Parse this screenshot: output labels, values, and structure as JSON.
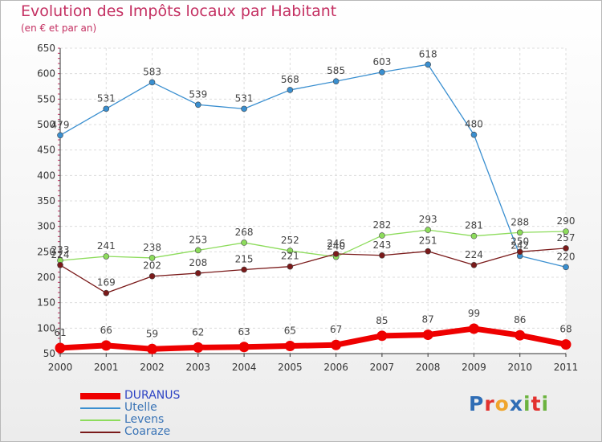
{
  "title": "Evolution des Impôts locaux par Habitant",
  "subtitle": "(en € et par an)",
  "logo": {
    "letters": [
      "P",
      "r",
      "o",
      "x",
      "i",
      "t",
      "i"
    ],
    "colors": [
      "#2f6db5",
      "#e2312e",
      "#f0a52d",
      "#2f6db5",
      "#6cb33f",
      "#e2312e",
      "#6cb33f"
    ]
  },
  "chart_data": {
    "type": "line",
    "title": "Evolution des Impôts locaux par Habitant",
    "subtitle": "(en € et par an)",
    "xlabel": "",
    "ylabel": "",
    "x": [
      "2000",
      "2001",
      "2002",
      "2003",
      "2004",
      "2005",
      "2006",
      "2007",
      "2008",
      "2009",
      "2010",
      "2011"
    ],
    "ylim": [
      50,
      650
    ],
    "yticks": [
      50,
      100,
      150,
      200,
      250,
      300,
      350,
      400,
      450,
      500,
      550,
      600,
      650
    ],
    "grid": true,
    "legend_position": "bottom-left",
    "series": [
      {
        "name": "DURANUS",
        "values": [
          61,
          66,
          59,
          62,
          63,
          65,
          67,
          85,
          87,
          99,
          86,
          68
        ],
        "color": "#ee0000",
        "emphasis": true
      },
      {
        "name": "Utelle",
        "values": [
          479,
          531,
          583,
          539,
          531,
          568,
          585,
          603,
          618,
          480,
          242,
          220
        ],
        "color": "#3a8fd0",
        "emphasis": false
      },
      {
        "name": "Levens",
        "values": [
          233,
          241,
          238,
          253,
          268,
          252,
          240,
          282,
          293,
          281,
          288,
          290
        ],
        "color": "#8ddc5c",
        "emphasis": false
      },
      {
        "name": "Coaraze",
        "values": [
          224,
          169,
          202,
          208,
          215,
          221,
          246,
          243,
          251,
          224,
          250,
          257
        ],
        "color": "#7a1a1a",
        "emphasis": false
      }
    ],
    "labels": [
      {
        "series": 0,
        "text": [
          "61",
          "66",
          "59",
          "62",
          "63",
          "65",
          "67",
          "85",
          "87",
          "99",
          "86",
          "68"
        ]
      },
      {
        "series": 1,
        "text": [
          "479",
          "531",
          "583",
          "539",
          "531",
          "568",
          "585",
          "603",
          "618",
          "480",
          "242",
          "220"
        ]
      },
      {
        "series": 2,
        "text": [
          "233",
          "241",
          "238",
          "253",
          "268",
          "252",
          "240",
          "282",
          "293",
          "281",
          "288",
          "290"
        ]
      },
      {
        "series": 3,
        "text": [
          "224",
          "169",
          "202",
          "208",
          "215",
          "221",
          "246",
          "243",
          "251",
          "224",
          "250",
          "257"
        ]
      }
    ]
  }
}
